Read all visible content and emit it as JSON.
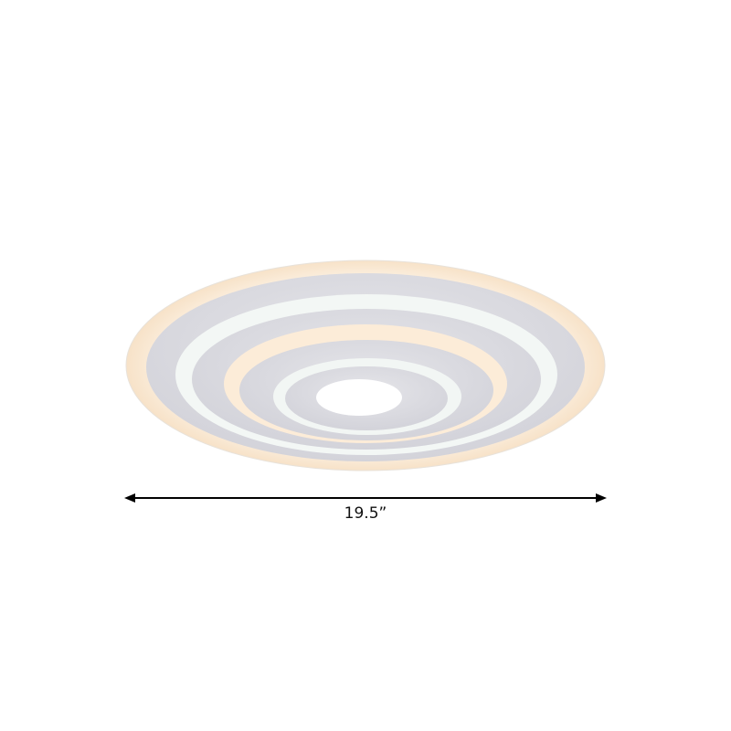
{
  "product": {
    "name_icon": "round-layered-led-ceiling-light",
    "colors": {
      "warm_glow": "#fbe9d2",
      "gray_ring": "#d9d9df",
      "cool_white": "#f4f7f6",
      "background": "#ffffff"
    }
  },
  "dimension": {
    "width_label": "19.5”",
    "arrow_icon": "double-headed-arrow"
  }
}
